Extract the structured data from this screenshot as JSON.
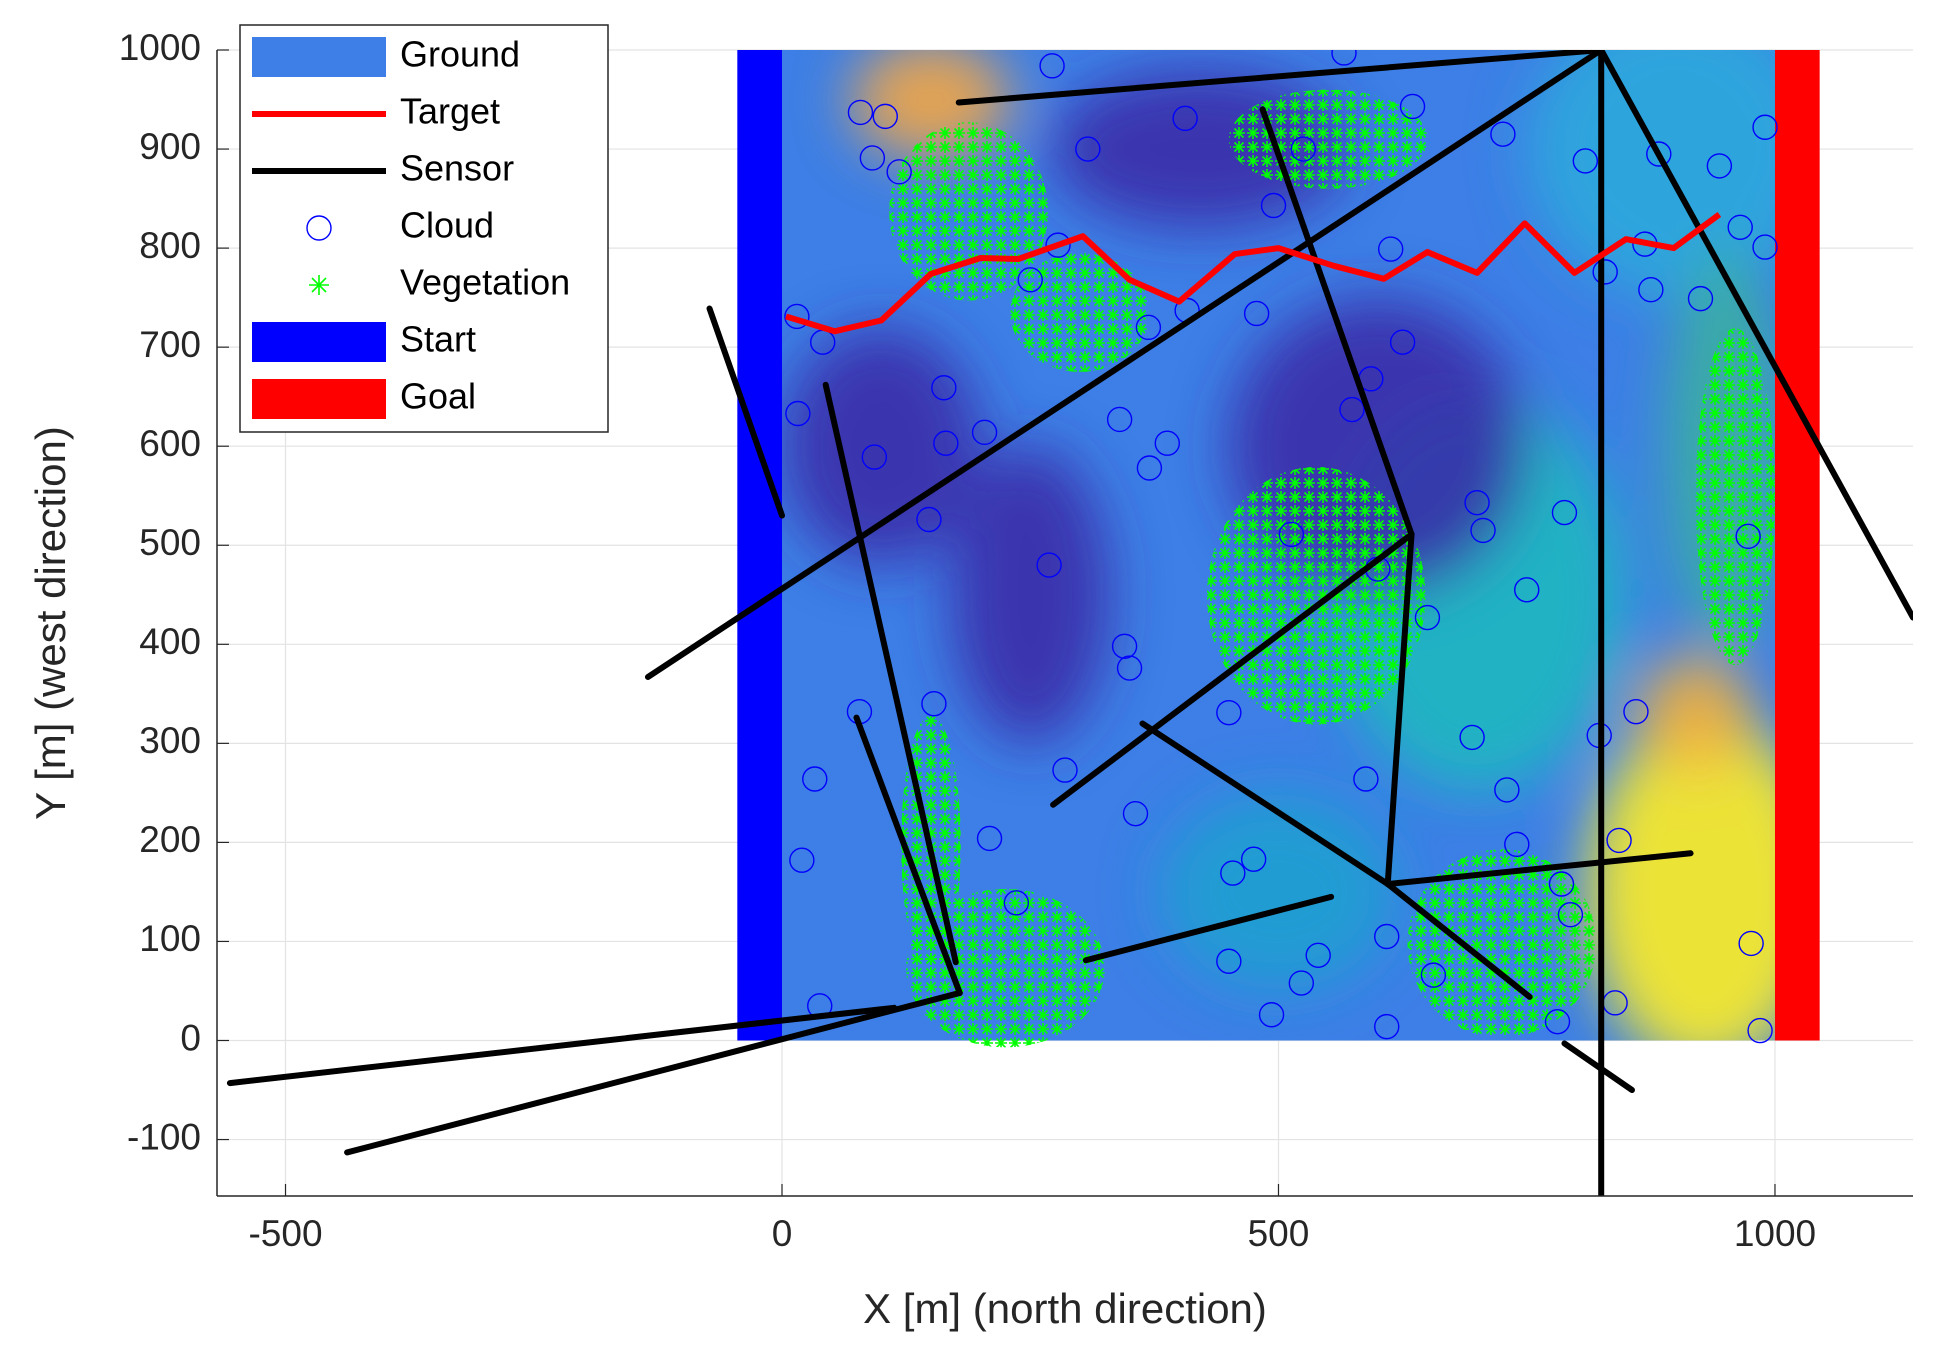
{
  "chart_data": {
    "type": "scatter",
    "xlabel": "X [m] (north direction)",
    "ylabel": "Y [m] (west direction)",
    "xlim": [
      -569,
      1139
    ],
    "ylim": [
      -157,
      1000
    ],
    "xticks": [
      -500,
      0,
      500,
      1000
    ],
    "yticks": [
      -100,
      0,
      100,
      200,
      300,
      400,
      500,
      600,
      700,
      800,
      900,
      1000
    ],
    "grid": true,
    "legend": "upper left",
    "series": [
      {
        "name": "Ground",
        "kind": "area",
        "color": "#3d7fe6",
        "x": [
          0,
          1000
        ],
        "y": [
          0,
          1000
        ],
        "patches": {
          "x": [
            150,
            900,
            930,
            920,
            700,
            600,
            420,
            100,
            950,
            500,
            250
          ],
          "y": [
            950,
            900,
            150,
            330,
            450,
            600,
            900,
            600,
            600,
            150,
            450
          ],
          "rx": [
            80,
            150,
            120,
            60,
            150,
            150,
            150,
            100,
            60,
            120,
            80
          ],
          "ry": [
            60,
            150,
            180,
            60,
            200,
            150,
            80,
            120,
            200,
            100,
            150
          ],
          "colors": [
            "#f5a742",
            "#2fa8dc",
            "#ffee22",
            "#f0b040",
            "#20b8c0",
            "#3a2ea8",
            "#3a2ea8",
            "#3a2ea8",
            "#3ab0a0",
            "#20a0d0",
            "#3a2ea8"
          ]
        }
      },
      {
        "name": "Target",
        "kind": "line",
        "color": "#ff0000",
        "x": [
          4,
          53,
          100,
          150,
          200,
          238,
          303,
          350,
          400,
          456,
          500,
          556,
          606,
          650,
          700,
          748,
          798,
          850,
          898,
          944
        ],
        "y": [
          731,
          716,
          727,
          774,
          790,
          789,
          812,
          768,
          746,
          794,
          800,
          782,
          769,
          796,
          775,
          825,
          775,
          809,
          800,
          834
        ]
      },
      {
        "name": "Sensor",
        "kind": "segments",
        "color": "#000000",
        "x": [
          [
            178,
            825
          ],
          [
            825,
            825
          ],
          [
            825,
            1139
          ],
          [
            825,
            -135
          ],
          [
            484,
            634
          ],
          [
            634,
            610
          ],
          [
            634,
            273
          ],
          [
            610,
            915
          ],
          [
            610,
            363
          ],
          [
            610,
            753
          ],
          [
            306,
            553
          ],
          [
            788,
            856
          ],
          [
            -73,
            0
          ],
          [
            44,
            175
          ],
          [
            75,
            179
          ],
          [
            179,
            -438
          ],
          [
            113,
            -556
          ]
        ],
        "y": [
          [
            947,
            1000
          ],
          [
            1000,
            -157
          ],
          [
            1000,
            427
          ],
          [
            1000,
            367
          ],
          [
            940,
            511
          ],
          [
            511,
            158
          ],
          [
            511,
            238
          ],
          [
            158,
            189
          ],
          [
            158,
            320
          ],
          [
            158,
            44
          ],
          [
            81,
            145
          ],
          [
            -3,
            -50
          ],
          [
            739,
            530
          ],
          [
            662,
            79
          ],
          [
            326,
            48
          ],
          [
            48,
            -113
          ],
          [
            33,
            -43
          ]
        ]
      },
      {
        "name": "Cloud",
        "kind": "circle",
        "color": "#0000ff",
        "x": [
          272,
          566,
          79,
          104,
          406,
          635,
          308,
          525,
          726,
          990,
          91,
          118,
          809,
          883,
          944,
          495,
          965,
          990,
          869,
          829,
          613,
          925,
          875,
          278,
          250,
          15,
          41,
          369,
          408,
          478,
          625,
          163,
          593,
          574,
          16,
          340,
          165,
          204,
          388,
          93,
          370,
          148,
          700,
          513,
          788,
          706,
          600,
          269,
          750,
          973,
          345,
          350,
          650,
          78,
          450,
          860,
          823,
          695,
          153,
          33,
          285,
          588,
          730,
          356,
          20,
          209,
          740,
          475,
          843,
          454,
          785,
          236,
          794,
          609,
          540,
          976,
          450,
          656,
          523,
          38,
          493,
          839,
          781,
          609,
          985
        ],
        "y": [
          984,
          997,
          937,
          933,
          931,
          943,
          900,
          900,
          915,
          922,
          891,
          877,
          888,
          895,
          883,
          843,
          821,
          801,
          804,
          776,
          799,
          749,
          758,
          803,
          768,
          731,
          705,
          720,
          737,
          734,
          705,
          659,
          668,
          637,
          633,
          627,
          603,
          614,
          603,
          589,
          578,
          526,
          543,
          511,
          533,
          515,
          476,
          480,
          455,
          509,
          398,
          376,
          427,
          332,
          331,
          332,
          308,
          306,
          340,
          264,
          273,
          264,
          253,
          229,
          182,
          204,
          198,
          183,
          202,
          169,
          158,
          139,
          127,
          105,
          86,
          98,
          80,
          66,
          58,
          35,
          26,
          38,
          19,
          14,
          10
        ]
      },
      {
        "name": "Vegetation",
        "kind": "asterisk",
        "color": "#00ff00",
        "x": [
          188,
          300,
          550,
          538,
          960,
          150,
          225,
          725
        ],
        "y": [
          837,
          735,
          910,
          449,
          549,
          198,
          73,
          98
        ],
        "rx": [
          80,
          70,
          100,
          110,
          40,
          30,
          100,
          95
        ],
        "ry": [
          90,
          60,
          50,
          130,
          170,
          130,
          80,
          95
        ]
      },
      {
        "name": "Start",
        "kind": "area",
        "color": "#0000ff",
        "x": [
          -45,
          0
        ],
        "y": [
          0,
          1000
        ]
      },
      {
        "name": "Goal",
        "kind": "area",
        "color": "#ff0000",
        "x": [
          1000,
          1045
        ],
        "y": [
          0,
          1000
        ]
      }
    ]
  }
}
